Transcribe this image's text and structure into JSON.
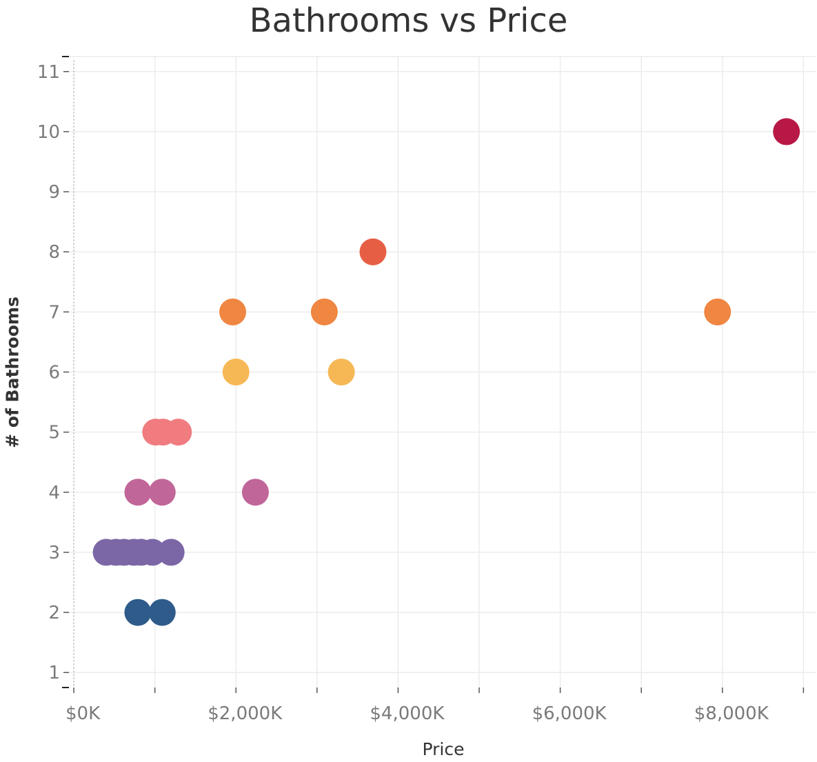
{
  "chart_data": {
    "type": "scatter",
    "title": "Bathrooms vs Price",
    "xlabel": "Price",
    "ylabel": "# of Bathrooms",
    "xlim": [
      -60,
      9150
    ],
    "ylim": [
      0.75,
      11.25
    ],
    "x_ticks": [
      0,
      2000,
      4000,
      6000,
      8000
    ],
    "x_tick_labels": [
      "$0K",
      "$2,000K",
      "$4,000K",
      "$6,000K",
      "$8,000K"
    ],
    "y_ticks": [
      1,
      2,
      3,
      4,
      5,
      6,
      7,
      8,
      9,
      10,
      11
    ],
    "y_tick_labels": [
      "1",
      "2",
      "3",
      "4",
      "5",
      "6",
      "7",
      "8",
      "9",
      "10",
      "11"
    ],
    "grid": true,
    "points": [
      {
        "x": 790,
        "y": 2,
        "color": "#2e5b8a"
      },
      {
        "x": 1090,
        "y": 2,
        "color": "#2e5b8a"
      },
      {
        "x": 400,
        "y": 3,
        "color": "#7b67a6"
      },
      {
        "x": 520,
        "y": 3,
        "color": "#7b67a6"
      },
      {
        "x": 620,
        "y": 3,
        "color": "#7b67a6"
      },
      {
        "x": 740,
        "y": 3,
        "color": "#7b67a6"
      },
      {
        "x": 830,
        "y": 3,
        "color": "#7b67a6"
      },
      {
        "x": 970,
        "y": 3,
        "color": "#7b67a6"
      },
      {
        "x": 1200,
        "y": 3,
        "color": "#7b67a6"
      },
      {
        "x": 790,
        "y": 4,
        "color": "#c06699"
      },
      {
        "x": 1090,
        "y": 4,
        "color": "#c06699"
      },
      {
        "x": 2240,
        "y": 4,
        "color": "#c06699"
      },
      {
        "x": 1010,
        "y": 5,
        "color": "#f07c80"
      },
      {
        "x": 1100,
        "y": 5,
        "color": "#f07c80"
      },
      {
        "x": 1290,
        "y": 5,
        "color": "#f07c80"
      },
      {
        "x": 2000,
        "y": 6,
        "color": "#f5b855"
      },
      {
        "x": 3300,
        "y": 6,
        "color": "#f5b855"
      },
      {
        "x": 1960,
        "y": 7,
        "color": "#ef8641"
      },
      {
        "x": 3090,
        "y": 7,
        "color": "#ef8641"
      },
      {
        "x": 7940,
        "y": 7,
        "color": "#ef8641"
      },
      {
        "x": 3690,
        "y": 8,
        "color": "#e65f45"
      },
      {
        "x": 8790,
        "y": 10,
        "color": "#b81844"
      }
    ]
  }
}
